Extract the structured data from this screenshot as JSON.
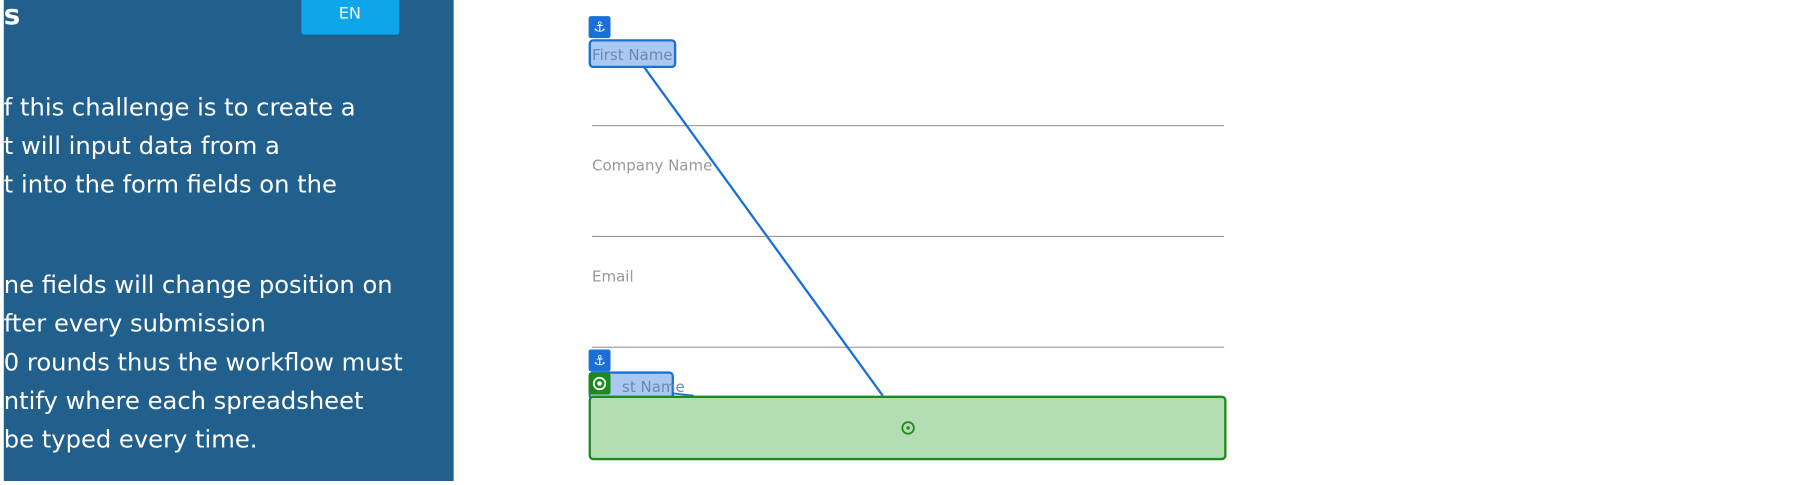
{
  "left_panel": {
    "title": "s",
    "language_button": "EN",
    "paragraph_1": [
      "f this challenge is to create a",
      "t will input data from a",
      "t into the form fields on the"
    ],
    "paragraph_2": [
      "ne fields will change position on",
      "fter every submission",
      "0 rounds thus the workflow must",
      "ntify where each spreadsheet",
      "be typed every time."
    ]
  },
  "form": {
    "fields": [
      "First Name",
      "Company Name",
      "Email"
    ]
  },
  "overlay": {
    "anchor_label_top": "First Name",
    "anchor_label_bottom": "st Name"
  }
}
